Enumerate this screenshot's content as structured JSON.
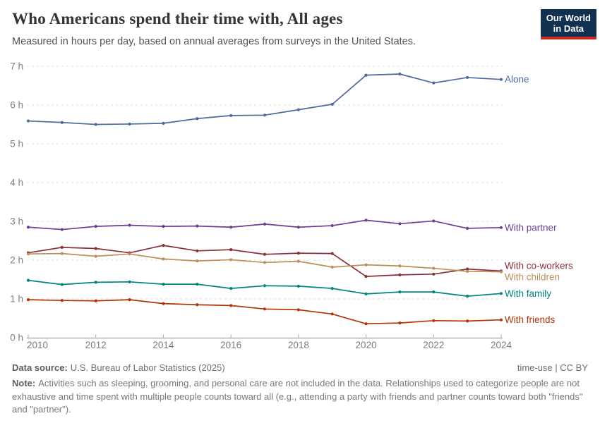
{
  "header": {
    "title": "Who Americans spend their time with, All ages",
    "subtitle": "Measured in hours per day, based on annual averages from surveys in the United States.",
    "logo": {
      "line1": "Our World",
      "line2": "in Data",
      "bg_color": "#12304f",
      "accent_color": "#cc2a22"
    }
  },
  "chart_data": {
    "type": "line",
    "title": "Who Americans spend their time with, All ages",
    "subtitle": "Measured in hours per day, based on annual averages from surveys in the United States.",
    "x": [
      2010,
      2011,
      2012,
      2013,
      2014,
      2015,
      2016,
      2017,
      2018,
      2019,
      2020,
      2021,
      2022,
      2023,
      2024
    ],
    "series": [
      {
        "name": "Alone",
        "color": "#4C6A9C",
        "values": [
          5.59,
          5.55,
          5.5,
          5.51,
          5.53,
          5.65,
          5.73,
          5.74,
          5.88,
          6.02,
          6.77,
          6.8,
          6.57,
          6.71,
          6.66
        ]
      },
      {
        "name": "With partner",
        "color": "#6D3E91",
        "values": [
          2.85,
          2.79,
          2.87,
          2.9,
          2.87,
          2.88,
          2.85,
          2.93,
          2.85,
          2.89,
          3.03,
          2.94,
          3.01,
          2.82,
          2.84
        ]
      },
      {
        "name": "With co-workers",
        "color": "#883039",
        "values": [
          2.19,
          2.33,
          2.3,
          2.19,
          2.38,
          2.24,
          2.27,
          2.15,
          2.18,
          2.17,
          1.58,
          1.62,
          1.64,
          1.77,
          1.72
        ]
      },
      {
        "name": "With children",
        "color": "#BC8E5A",
        "values": [
          2.16,
          2.17,
          2.1,
          2.16,
          2.03,
          1.98,
          2.01,
          1.94,
          1.97,
          1.82,
          1.88,
          1.85,
          1.79,
          1.71,
          1.7
        ]
      },
      {
        "name": "With family",
        "color": "#00847E",
        "values": [
          1.48,
          1.37,
          1.43,
          1.44,
          1.38,
          1.38,
          1.27,
          1.34,
          1.33,
          1.27,
          1.13,
          1.18,
          1.18,
          1.07,
          1.14
        ]
      },
      {
        "name": "With friends",
        "color": "#B13507",
        "values": [
          0.98,
          0.96,
          0.95,
          0.98,
          0.88,
          0.85,
          0.83,
          0.74,
          0.72,
          0.61,
          0.36,
          0.38,
          0.44,
          0.43,
          0.46
        ]
      }
    ],
    "yticks": [
      0,
      1,
      2,
      3,
      4,
      5,
      6,
      7
    ],
    "ytick_labels": [
      "0 h",
      "1 h",
      "2 h",
      "3 h",
      "4 h",
      "5 h",
      "6 h",
      "7 h"
    ],
    "xticks": [
      2010,
      2012,
      2014,
      2016,
      2018,
      2020,
      2022,
      2024
    ],
    "xtick_labels": [
      "2010",
      "2012",
      "2014",
      "2016",
      "2018",
      "2020",
      "2022",
      "2024"
    ],
    "ylim": [
      0,
      7
    ],
    "xlim": [
      2010,
      2024
    ],
    "grid": "horizontal-dashed",
    "legend_position": "line-end-labels-right"
  },
  "footer": {
    "source_label": "Data source:",
    "source_text": "U.S. Bureau of Labor Statistics (2025)",
    "rights": "time-use | CC BY",
    "note_label": "Note:",
    "note_text": "Activities such as sleeping, grooming, and personal care are not included in the data. Relationships used to categorize people are not exhaustive and time spent with multiple people counts toward all (e.g., attending a party with friends and partner counts toward both \"friends\" and \"partner\")."
  }
}
